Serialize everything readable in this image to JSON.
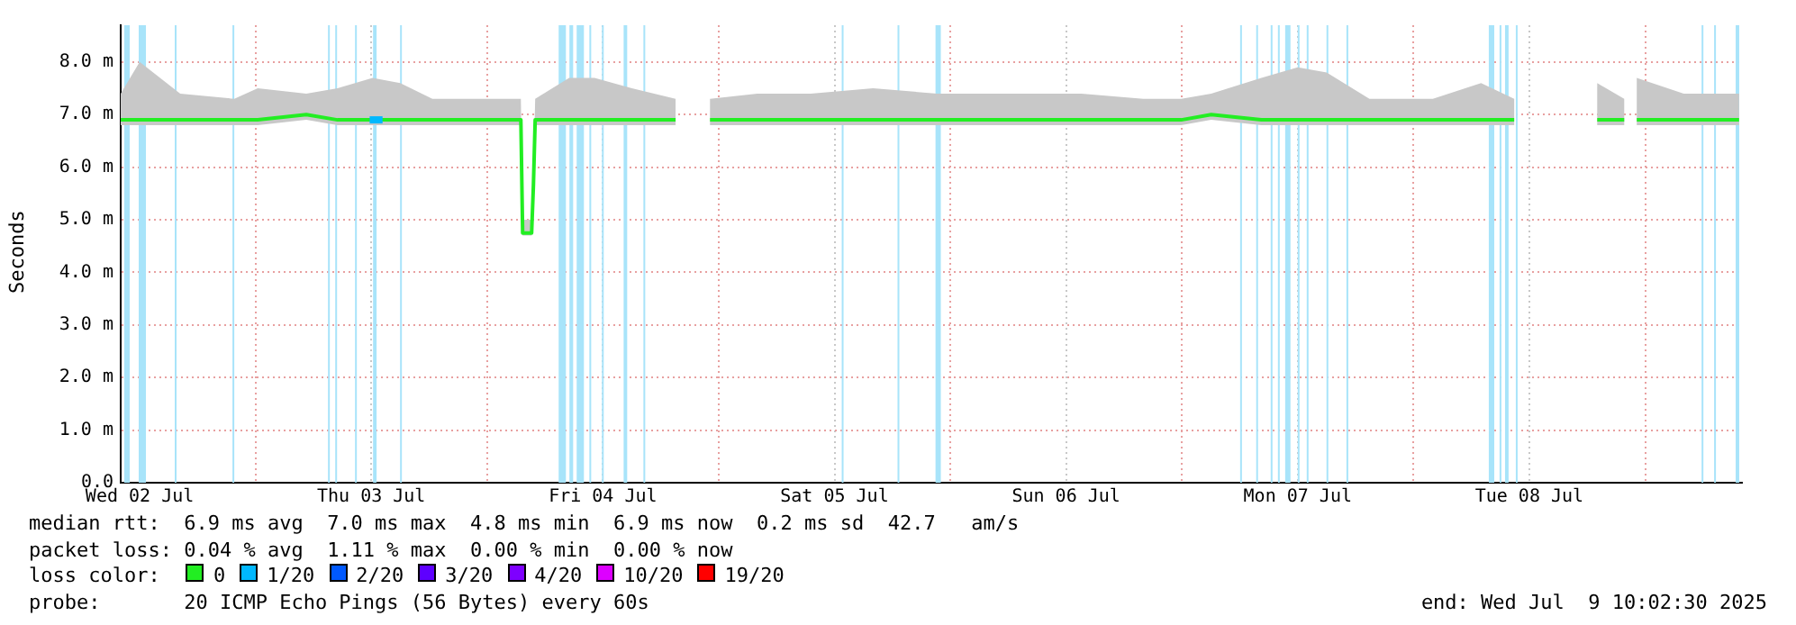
{
  "chart_data": {
    "type": "line",
    "ylabel": "Seconds",
    "legend_title": "loss color:",
    "legend": "bottom",
    "grid": true,
    "marker": "none",
    "line_style": "solid",
    "xlim": [
      "2025-07-02T10:02",
      "2025-07-09T10:02"
    ],
    "xticks": [
      {
        "value": "2025-07-02T12:00",
        "label": "Wed 02 Jul"
      },
      {
        "value": "2025-07-03T00:00",
        "label": null
      },
      {
        "value": "2025-07-03T12:00",
        "label": "Thu 03 Jul"
      },
      {
        "value": "2025-07-04T00:00",
        "label": null
      },
      {
        "value": "2025-07-04T12:00",
        "label": "Fri 04 Jul"
      },
      {
        "value": "2025-07-05T00:00",
        "label": null
      },
      {
        "value": "2025-07-05T12:00",
        "label": "Sat 05 Jul"
      },
      {
        "value": "2025-07-06T00:00",
        "label": null
      },
      {
        "value": "2025-07-06T12:00",
        "label": "Sun 06 Jul"
      },
      {
        "value": "2025-07-07T00:00",
        "label": null
      },
      {
        "value": "2025-07-07T12:00",
        "label": "Mon 07 Jul"
      },
      {
        "value": "2025-07-08T00:00",
        "label": null
      },
      {
        "value": "2025-07-08T12:00",
        "label": "Tue 08 Jul"
      },
      {
        "value": "2025-07-09T00:00",
        "label": null
      }
    ],
    "ylim": [
      0,
      8.7
    ],
    "yticks": [
      {
        "value": 0,
        "label": "0.0"
      },
      {
        "value": 1,
        "label": "1.0 m"
      },
      {
        "value": 2,
        "label": "2.0 m"
      },
      {
        "value": 3,
        "label": "3.0 m"
      },
      {
        "value": 4,
        "label": "4.0 m"
      },
      {
        "value": 5,
        "label": "5.0 m"
      },
      {
        "value": 6,
        "label": "6.0 m"
      },
      {
        "value": 7,
        "label": "7.0 m"
      },
      {
        "value": 8,
        "label": "8.0 m"
      }
    ],
    "series": [
      {
        "name": "0",
        "color": "#22ee22",
        "x": [
          "2025-07-02T10:02",
          "2025-07-02T12:00",
          "2025-07-02T16:12",
          "2025-07-02T21:48",
          "2025-07-03T00:14",
          "2025-07-03T05:16",
          "2025-07-03T08:30",
          "2025-07-03T12:08",
          "2025-07-03T15:00",
          "2025-07-03T18:20",
          "2025-07-03T23:23",
          "2025-07-04T03:30",
          "2025-07-04T03:41",
          "2025-07-04T04:37",
          "2025-07-04T04:48",
          "2025-07-04T04:59",
          "2025-07-04T08:30",
          "2025-07-04T11:08",
          "2025-07-04T15:00",
          "2025-07-04T19:32",
          "2025-07-04T21:00",
          "2025-07-04T23:06",
          "2025-07-05T04:00",
          "2025-07-05T09:32",
          "2025-07-05T16:00",
          "2025-07-05T22:38",
          "2025-07-06T06:00",
          "2025-07-06T13:35",
          "2025-07-06T20:00",
          "2025-07-06T23:56",
          "2025-07-07T03:02",
          "2025-07-07T08:14",
          "2025-07-07T12:00",
          "2025-07-07T15:00",
          "2025-07-07T19:26",
          "2025-07-08T02:00",
          "2025-07-08T07:00",
          "2025-07-08T10:26",
          "2025-07-08T15:00",
          "2025-07-08T19:02",
          "2025-07-08T21:50",
          "2025-07-08T22:30",
          "2025-07-08T23:08",
          "2025-07-09T04:00",
          "2025-07-09T09:44"
        ],
        "values": [
          6.9,
          6.9,
          6.9,
          6.9,
          6.9,
          7.0,
          6.9,
          6.9,
          6.9,
          6.9,
          6.9,
          6.9,
          4.75,
          4.75,
          5.65,
          6.9,
          6.9,
          6.9,
          6.9,
          6.9,
          null,
          6.9,
          6.9,
          6.9,
          6.9,
          6.9,
          6.9,
          6.9,
          6.9,
          6.9,
          7.0,
          6.9,
          6.9,
          6.9,
          6.9,
          6.9,
          6.9,
          6.9,
          null,
          6.9,
          6.9,
          null,
          6.9,
          6.9,
          6.9
        ],
        "lower": [
          6.8,
          6.8,
          6.8,
          6.8,
          6.8,
          6.9,
          6.8,
          6.8,
          6.8,
          6.8,
          6.8,
          6.8,
          4.7,
          4.7,
          5.6,
          6.8,
          6.8,
          6.8,
          6.8,
          6.8,
          null,
          6.8,
          6.8,
          6.8,
          6.8,
          6.8,
          6.8,
          6.8,
          6.8,
          6.8,
          6.9,
          6.8,
          6.8,
          6.8,
          6.8,
          6.8,
          6.8,
          6.8,
          null,
          6.8,
          6.8,
          null,
          6.8,
          6.8,
          6.8
        ],
        "upper": [
          7.4,
          8.0,
          7.4,
          7.3,
          7.5,
          7.4,
          7.5,
          7.7,
          7.6,
          7.3,
          7.3,
          7.3,
          5.0,
          5.0,
          5.8,
          7.3,
          7.7,
          7.7,
          7.5,
          7.3,
          null,
          7.3,
          7.4,
          7.4,
          7.5,
          7.4,
          7.4,
          7.4,
          7.3,
          7.3,
          7.4,
          7.7,
          7.9,
          7.8,
          7.3,
          7.3,
          7.6,
          7.3,
          null,
          7.6,
          7.3,
          null,
          7.7,
          7.4,
          7.4
        ]
      },
      {
        "name": "1/20",
        "color": "#00b8ff",
        "x": [
          "2025-07-03T11:50",
          "2025-07-03T12:30",
          "2025-07-03T13:10"
        ],
        "values": [
          6.9,
          6.9,
          6.9
        ]
      },
      {
        "name": "2/20",
        "color": "#0059ff"
      },
      {
        "name": "3/20",
        "color": "#5e00ff"
      },
      {
        "name": "4/20",
        "color": "#7e00ff"
      },
      {
        "name": "10/20",
        "color": "#dd00ff"
      },
      {
        "name": "19/20",
        "color": "#ff0000"
      }
    ],
    "bands": [
      {
        "axis": "x",
        "from": "2025-07-02T10:24",
        "to": "2025-07-02T10:58",
        "color": "#a8e4fa"
      },
      {
        "axis": "x",
        "from": "2025-07-02T11:54",
        "to": "2025-07-02T12:39",
        "color": "#a8e4fa"
      },
      {
        "axis": "x",
        "from": "2025-07-02T15:38",
        "to": "2025-07-02T15:49",
        "color": "#a8e4fa"
      },
      {
        "axis": "x",
        "from": "2025-07-02T21:37",
        "to": "2025-07-02T21:48",
        "color": "#a8e4fa"
      },
      {
        "axis": "x",
        "from": "2025-07-03T07:31",
        "to": "2025-07-03T07:42",
        "color": "#a8e4fa"
      },
      {
        "axis": "x",
        "from": "2025-07-03T08:16",
        "to": "2025-07-03T08:27",
        "color": "#a8e4fa"
      },
      {
        "axis": "x",
        "from": "2025-07-03T10:19",
        "to": "2025-07-03T10:30",
        "color": "#a8e4fa"
      },
      {
        "axis": "x",
        "from": "2025-07-03T12:11",
        "to": "2025-07-03T12:33",
        "color": "#a8e4fa"
      },
      {
        "axis": "x",
        "from": "2025-07-03T14:59",
        "to": "2025-07-03T15:10",
        "color": "#a8e4fa"
      },
      {
        "axis": "x",
        "from": "2025-07-04T07:25",
        "to": "2025-07-04T08:10",
        "color": "#a8e4fa"
      },
      {
        "axis": "x",
        "from": "2025-07-04T08:32",
        "to": "2025-07-04T08:55",
        "color": "#a8e4fa"
      },
      {
        "axis": "x",
        "from": "2025-07-04T09:17",
        "to": "2025-07-04T10:02",
        "color": "#a8e4fa"
      },
      {
        "axis": "x",
        "from": "2025-07-04T10:36",
        "to": "2025-07-04T10:47",
        "color": "#a8e4fa"
      },
      {
        "axis": "x",
        "from": "2025-07-04T11:54",
        "to": "2025-07-04T12:05",
        "color": "#a8e4fa"
      },
      {
        "axis": "x",
        "from": "2025-07-04T14:09",
        "to": "2025-07-04T14:31",
        "color": "#a8e4fa"
      },
      {
        "axis": "x",
        "from": "2025-07-04T16:12",
        "to": "2025-07-04T16:23",
        "color": "#a8e4fa"
      },
      {
        "axis": "x",
        "from": "2025-07-05T12:45",
        "to": "2025-07-05T12:56",
        "color": "#a8e4fa"
      },
      {
        "axis": "x",
        "from": "2025-07-05T18:32",
        "to": "2025-07-05T18:43",
        "color": "#a8e4fa"
      },
      {
        "axis": "x",
        "from": "2025-07-05T22:28",
        "to": "2025-07-05T23:01",
        "color": "#a8e4fa"
      },
      {
        "axis": "x",
        "from": "2025-07-07T06:02",
        "to": "2025-07-07T06:13",
        "color": "#a8e4fa"
      },
      {
        "axis": "x",
        "from": "2025-07-07T07:42",
        "to": "2025-07-07T07:53",
        "color": "#a8e4fa"
      },
      {
        "axis": "x",
        "from": "2025-07-07T09:12",
        "to": "2025-07-07T09:23",
        "color": "#a8e4fa"
      },
      {
        "axis": "x",
        "from": "2025-07-07T09:57",
        "to": "2025-07-07T10:08",
        "color": "#a8e4fa"
      },
      {
        "axis": "x",
        "from": "2025-07-07T10:42",
        "to": "2025-07-07T11:15",
        "color": "#a8e4fa"
      },
      {
        "axis": "x",
        "from": "2025-07-07T12:00",
        "to": "2025-07-07T12:11",
        "color": "#a8e4fa"
      },
      {
        "axis": "x",
        "from": "2025-07-07T12:56",
        "to": "2025-07-07T13:07",
        "color": "#a8e4fa"
      },
      {
        "axis": "x",
        "from": "2025-07-07T14:59",
        "to": "2025-07-07T15:10",
        "color": "#a8e4fa"
      },
      {
        "axis": "x",
        "from": "2025-07-07T17:03",
        "to": "2025-07-07T17:14",
        "color": "#a8e4fa"
      },
      {
        "axis": "x",
        "from": "2025-07-08T07:48",
        "to": "2025-07-08T08:22",
        "color": "#a8e4fa"
      },
      {
        "axis": "x",
        "from": "2025-07-08T08:55",
        "to": "2025-07-08T09:06",
        "color": "#a8e4fa"
      },
      {
        "axis": "x",
        "from": "2025-07-08T09:29",
        "to": "2025-07-08T09:51",
        "color": "#a8e4fa"
      },
      {
        "axis": "x",
        "from": "2025-07-08T10:36",
        "to": "2025-07-08T10:47",
        "color": "#a8e4fa"
      },
      {
        "axis": "x",
        "from": "2025-07-09T05:51",
        "to": "2025-07-09T06:02",
        "color": "#a8e4fa"
      },
      {
        "axis": "x",
        "from": "2025-07-09T07:09",
        "to": "2025-07-09T07:20",
        "color": "#a8e4fa"
      },
      {
        "axis": "x",
        "from": "2025-07-09T09:23",
        "to": "2025-07-09T09:45",
        "color": "#a8e4fa"
      }
    ],
    "annotations": [
      "median rtt:  6.9 ms avg  7.0 ms max  4.8 ms min  6.9 ms now  0.2 ms sd  42.7   am/s",
      "packet loss: 0.04 % avg  1.11 % max  0.00 % min  0.00 % now",
      "probe:       20 ICMP Echo Pings (56 Bytes) every 60s",
      "end: Wed Jul  9 10:02:30 2025"
    ]
  }
}
